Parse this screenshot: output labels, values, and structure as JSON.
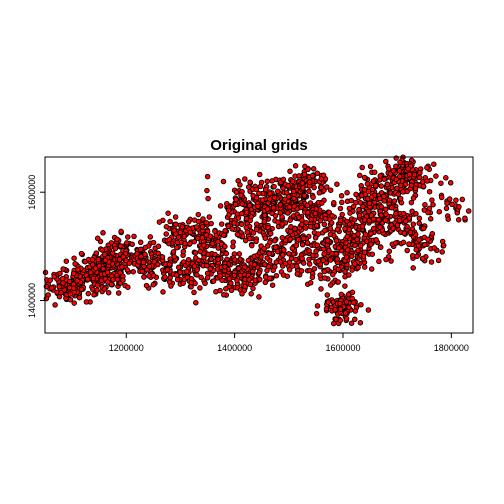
{
  "chart_data": {
    "type": "scatter",
    "title": "Original grids",
    "xlabel": "",
    "ylabel": "",
    "xlim": [
      1050000,
      1840000
    ],
    "ylim": [
      1340000,
      1665000
    ],
    "grid": false,
    "marker_fill": "#ff0000",
    "marker_stroke": "#000000",
    "x_ticks": [
      {
        "value": 1200000,
        "label": "1200000"
      },
      {
        "value": 1400000,
        "label": "1400000"
      },
      {
        "value": 1600000,
        "label": "1600000"
      },
      {
        "value": 1800000,
        "label": "1800000"
      }
    ],
    "y_ticks": [
      {
        "value": 1400000,
        "label": "1400000"
      },
      {
        "value": 1600000,
        "label": "1600000"
      }
    ],
    "clusters": [
      {
        "x": 1095000,
        "y": 1428000,
        "sx": 22000,
        "sy": 13000,
        "n": 120
      },
      {
        "x": 1150000,
        "y": 1450000,
        "sx": 28000,
        "sy": 17000,
        "n": 170
      },
      {
        "x": 1180000,
        "y": 1485000,
        "sx": 20000,
        "sy": 17000,
        "n": 90
      },
      {
        "x": 1230000,
        "y": 1480000,
        "sx": 16000,
        "sy": 17000,
        "n": 60
      },
      {
        "x": 1290000,
        "y": 1460000,
        "sx": 26000,
        "sy": 20000,
        "n": 110
      },
      {
        "x": 1300000,
        "y": 1530000,
        "sx": 20000,
        "sy": 15000,
        "n": 70
      },
      {
        "x": 1350000,
        "y": 1500000,
        "sx": 20000,
        "sy": 30000,
        "n": 110
      },
      {
        "x": 1400000,
        "y": 1450000,
        "sx": 30000,
        "sy": 22000,
        "n": 150
      },
      {
        "x": 1420000,
        "y": 1560000,
        "sx": 25000,
        "sy": 30000,
        "n": 120
      },
      {
        "x": 1480000,
        "y": 1580000,
        "sx": 35000,
        "sy": 22000,
        "n": 180
      },
      {
        "x": 1470000,
        "y": 1490000,
        "sx": 30000,
        "sy": 25000,
        "n": 130
      },
      {
        "x": 1540000,
        "y": 1560000,
        "sx": 25000,
        "sy": 25000,
        "n": 120
      },
      {
        "x": 1560000,
        "y": 1480000,
        "sx": 30000,
        "sy": 25000,
        "n": 130
      },
      {
        "x": 1620000,
        "y": 1510000,
        "sx": 30000,
        "sy": 30000,
        "n": 170
      },
      {
        "x": 1660000,
        "y": 1590000,
        "sx": 30000,
        "sy": 22000,
        "n": 150
      },
      {
        "x": 1720000,
        "y": 1630000,
        "sx": 25000,
        "sy": 17000,
        "n": 130
      },
      {
        "x": 1700000,
        "y": 1550000,
        "sx": 30000,
        "sy": 25000,
        "n": 110
      },
      {
        "x": 1750000,
        "y": 1500000,
        "sx": 20000,
        "sy": 15000,
        "n": 50
      },
      {
        "x": 1600000,
        "y": 1390000,
        "sx": 20000,
        "sy": 13000,
        "n": 90
      },
      {
        "x": 1540000,
        "y": 1620000,
        "sx": 20000,
        "sy": 12000,
        "n": 60
      },
      {
        "x": 1800000,
        "y": 1580000,
        "sx": 15000,
        "sy": 20000,
        "n": 25
      }
    ]
  }
}
